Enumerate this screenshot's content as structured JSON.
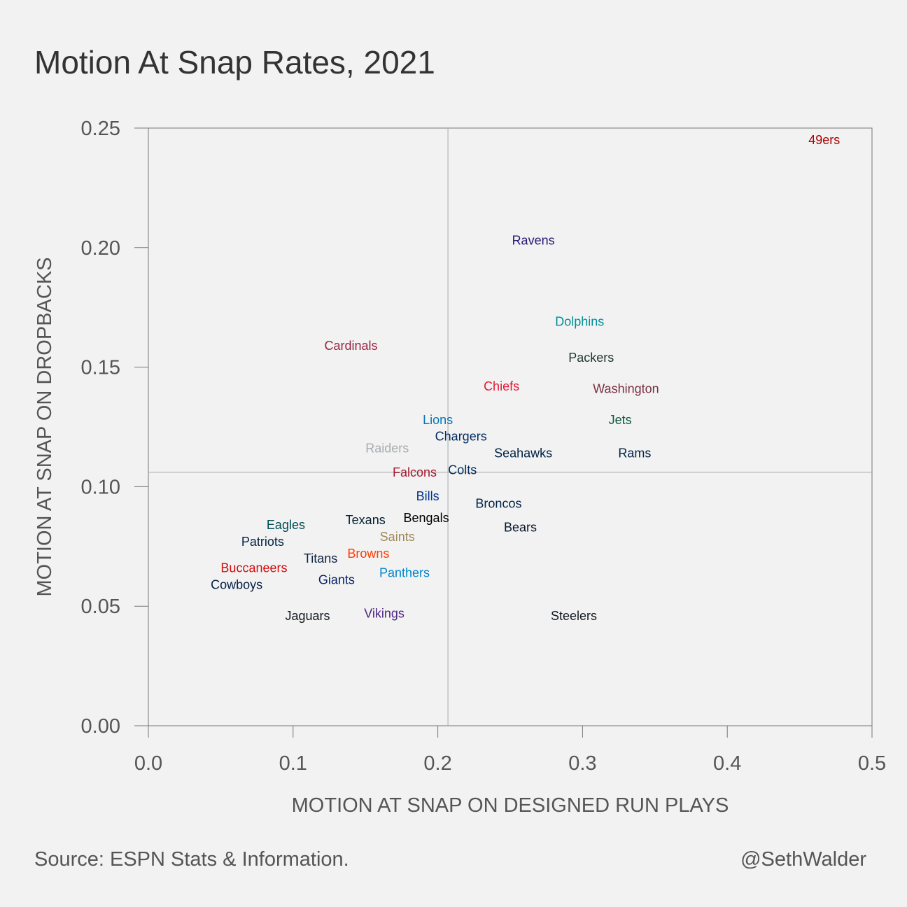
{
  "title": "Motion At Snap Rates, 2021",
  "source": "Source: ESPN Stats & Information.",
  "credit": "@SethWalder",
  "chart_data": {
    "type": "scatter",
    "title": "Motion At Snap Rates, 2021",
    "xlabel": "MOTION AT SNAP ON DESIGNED RUN PLAYS",
    "ylabel": "MOTION AT SNAP ON DROPBACKS",
    "xlim": [
      0,
      0.5
    ],
    "ylim": [
      0,
      0.25
    ],
    "x_ticks": [
      "0.0",
      "0.1",
      "0.2",
      "0.3",
      "0.4",
      "0.5"
    ],
    "y_ticks": [
      "0.00",
      "0.05",
      "0.10",
      "0.15",
      "0.20",
      "0.25"
    ],
    "x_tick_values": [
      0,
      0.1,
      0.2,
      0.3,
      0.4,
      0.5
    ],
    "y_tick_values": [
      0,
      0.05,
      0.1,
      0.15,
      0.2,
      0.25
    ],
    "reference_lines": {
      "x_mean": 0.207,
      "y_mean": 0.106
    },
    "grid": false,
    "points": [
      {
        "label": "49ers",
        "x": 0.467,
        "y": 0.245,
        "color": "#aa0000"
      },
      {
        "label": "Ravens",
        "x": 0.266,
        "y": 0.203,
        "color": "#241773"
      },
      {
        "label": "Dolphins",
        "x": 0.298,
        "y": 0.169,
        "color": "#008e97"
      },
      {
        "label": "Cardinals",
        "x": 0.14,
        "y": 0.159,
        "color": "#97233f"
      },
      {
        "label": "Packers",
        "x": 0.306,
        "y": 0.154,
        "color": "#203731"
      },
      {
        "label": "Chiefs",
        "x": 0.244,
        "y": 0.142,
        "color": "#e31837"
      },
      {
        "label": "Washington",
        "x": 0.33,
        "y": 0.141,
        "color": "#773141"
      },
      {
        "label": "Lions",
        "x": 0.2,
        "y": 0.128,
        "color": "#0076b6"
      },
      {
        "label": "Jets",
        "x": 0.326,
        "y": 0.128,
        "color": "#125740"
      },
      {
        "label": "Chargers",
        "x": 0.216,
        "y": 0.121,
        "color": "#002a5e"
      },
      {
        "label": "Raiders",
        "x": 0.165,
        "y": 0.116,
        "color": "#a5acaf"
      },
      {
        "label": "Seahawks",
        "x": 0.259,
        "y": 0.114,
        "color": "#002244"
      },
      {
        "label": "Rams",
        "x": 0.336,
        "y": 0.114,
        "color": "#002244"
      },
      {
        "label": "Colts",
        "x": 0.217,
        "y": 0.107,
        "color": "#002c5f"
      },
      {
        "label": "Falcons",
        "x": 0.184,
        "y": 0.106,
        "color": "#a71930"
      },
      {
        "label": "Bills",
        "x": 0.193,
        "y": 0.096,
        "color": "#00338d"
      },
      {
        "label": "Broncos",
        "x": 0.242,
        "y": 0.093,
        "color": "#002244"
      },
      {
        "label": "Texans",
        "x": 0.15,
        "y": 0.086,
        "color": "#03202f"
      },
      {
        "label": "Bengals",
        "x": 0.192,
        "y": 0.087,
        "color": "#000000"
      },
      {
        "label": "Eagles",
        "x": 0.095,
        "y": 0.084,
        "color": "#004c54"
      },
      {
        "label": "Bears",
        "x": 0.257,
        "y": 0.083,
        "color": "#0b162a"
      },
      {
        "label": "Saints",
        "x": 0.172,
        "y": 0.079,
        "color": "#9f8958"
      },
      {
        "label": "Patriots",
        "x": 0.079,
        "y": 0.077,
        "color": "#002244"
      },
      {
        "label": "Titans",
        "x": 0.119,
        "y": 0.07,
        "color": "#0c2340"
      },
      {
        "label": "Browns",
        "x": 0.152,
        "y": 0.072,
        "color": "#ff3c00"
      },
      {
        "label": "Buccaneers",
        "x": 0.073,
        "y": 0.066,
        "color": "#d50a0a"
      },
      {
        "label": "Panthers",
        "x": 0.177,
        "y": 0.064,
        "color": "#0085ca"
      },
      {
        "label": "Giants",
        "x": 0.13,
        "y": 0.061,
        "color": "#0b2265"
      },
      {
        "label": "Cowboys",
        "x": 0.061,
        "y": 0.059,
        "color": "#041e42"
      },
      {
        "label": "Jaguars",
        "x": 0.11,
        "y": 0.046,
        "color": "#101820"
      },
      {
        "label": "Vikings",
        "x": 0.163,
        "y": 0.047,
        "color": "#4f2683"
      },
      {
        "label": "Steelers",
        "x": 0.294,
        "y": 0.046,
        "color": "#101820"
      }
    ]
  }
}
